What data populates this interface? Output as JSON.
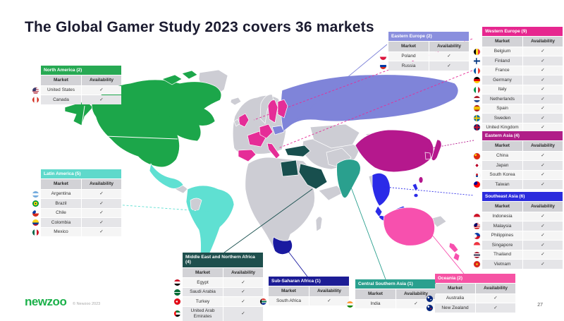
{
  "title": "The Global Gamer Study 2023 covers 36 markets",
  "footer": {
    "logo_text": "newzoo",
    "copyright": "© Newzoo 2023",
    "page_number": "27"
  },
  "table": {
    "market_header": "Market",
    "availability_header": "Availability",
    "check": "✓"
  },
  "map": {
    "land_color": "#CDCDD4",
    "ocean_color": "#FFFFFF"
  },
  "regions": [
    {
      "id": "north_america",
      "label": "North America (2)",
      "color": "#27A953",
      "map_color": "#1CA64A",
      "markets": [
        {
          "name": "United States",
          "flag": "us"
        },
        {
          "name": "Canada",
          "flag": "ca"
        }
      ]
    },
    {
      "id": "latin_america",
      "label": "Latin America (5)",
      "color": "#5FD9CB",
      "map_color": "#5FE0D2",
      "markets": [
        {
          "name": "Argentina",
          "flag": "ar"
        },
        {
          "name": "Brazil",
          "flag": "br"
        },
        {
          "name": "Chile",
          "flag": "cl"
        },
        {
          "name": "Colombia",
          "flag": "co"
        },
        {
          "name": "Mexico",
          "flag": "mx"
        }
      ]
    },
    {
      "id": "eastern_europe",
      "label": "Eastern Europe (2)",
      "color": "#8A8FDE",
      "map_color": "#7F84D9",
      "markets": [
        {
          "name": "Poland",
          "flag": "pl"
        },
        {
          "name": "Russia",
          "flag": "ru"
        }
      ]
    },
    {
      "id": "western_europe",
      "label": "Western Europe (9)",
      "color": "#E6278F",
      "map_color": "#E52D97",
      "markets": [
        {
          "name": "Belgium",
          "flag": "be"
        },
        {
          "name": "Finland",
          "flag": "fi"
        },
        {
          "name": "France",
          "flag": "fr"
        },
        {
          "name": "Germany",
          "flag": "de"
        },
        {
          "name": "Italy",
          "flag": "it"
        },
        {
          "name": "Netherlands",
          "flag": "nl"
        },
        {
          "name": "Spain",
          "flag": "es"
        },
        {
          "name": "Sweden",
          "flag": "se"
        },
        {
          "name": "United Kingdom",
          "flag": "gb"
        }
      ]
    },
    {
      "id": "eastern_asia",
      "label": "Eastern Asia (4)",
      "color": "#B01E88",
      "map_color": "#B5188D",
      "markets": [
        {
          "name": "China",
          "flag": "cn"
        },
        {
          "name": "Japan",
          "flag": "jp"
        },
        {
          "name": "South Korea",
          "flag": "kr"
        },
        {
          "name": "Taiwan",
          "flag": "tw"
        }
      ]
    },
    {
      "id": "southeast_asia",
      "label": "Southeast Asia (6)",
      "color": "#2C2CDD",
      "map_color": "#2B2BE8",
      "markets": [
        {
          "name": "Indonesia",
          "flag": "id"
        },
        {
          "name": "Malaysia",
          "flag": "my"
        },
        {
          "name": "Philippines",
          "flag": "ph"
        },
        {
          "name": "Singapore",
          "flag": "sg"
        },
        {
          "name": "Thailand",
          "flag": "th"
        },
        {
          "name": "Vietnam",
          "flag": "vn"
        }
      ]
    },
    {
      "id": "middle_east",
      "label": "Middle East and Northern Africa (4)",
      "color": "#1E4F4D",
      "map_color": "#184F4E",
      "markets": [
        {
          "name": "Egypt",
          "flag": "eg"
        },
        {
          "name": "Saudi Arabia",
          "flag": "sa"
        },
        {
          "name": "Turkey",
          "flag": "tr"
        },
        {
          "name": "United Arab Emirates",
          "flag": "ae"
        }
      ]
    },
    {
      "id": "sub_saharan",
      "label": "Sub-Saharan Africa (1)",
      "color": "#1C1C95",
      "map_color": "#1A1AA0",
      "markets": [
        {
          "name": "South Africa",
          "flag": "za"
        }
      ]
    },
    {
      "id": "central_southern_asia",
      "label": "Central Southern Asia (1)",
      "color": "#2AA08E",
      "map_color": "#2AA08E",
      "markets": [
        {
          "name": "India",
          "flag": "in"
        }
      ]
    },
    {
      "id": "oceania",
      "label": "Oceania (2)",
      "color": "#F653A4",
      "map_color": "#F750AE",
      "markets": [
        {
          "name": "Australia",
          "flag": "au"
        },
        {
          "name": "New Zealand",
          "flag": "nz"
        }
      ]
    }
  ]
}
